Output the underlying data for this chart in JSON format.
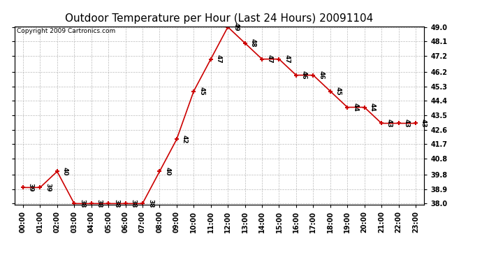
{
  "title": "Outdoor Temperature per Hour (Last 24 Hours) 20091104",
  "copyright": "Copyright 2009 Cartronics.com",
  "hours": [
    "00:00",
    "01:00",
    "02:00",
    "03:00",
    "04:00",
    "05:00",
    "06:00",
    "07:00",
    "08:00",
    "09:00",
    "10:00",
    "11:00",
    "12:00",
    "13:00",
    "14:00",
    "15:00",
    "16:00",
    "17:00",
    "18:00",
    "19:00",
    "20:00",
    "21:00",
    "22:00",
    "23:00"
  ],
  "temps": [
    39,
    39,
    40,
    38,
    38,
    38,
    38,
    38,
    40,
    42,
    45,
    47,
    49,
    48,
    47,
    47,
    46,
    46,
    45,
    44,
    44,
    43,
    43,
    43
  ],
  "line_color": "#cc0000",
  "marker_color": "#cc0000",
  "bg_color": "#ffffff",
  "grid_color": "#aaaaaa",
  "ylim_min": 38.0,
  "ylim_max": 49.0,
  "yticks": [
    38.0,
    38.9,
    39.8,
    40.8,
    41.7,
    42.6,
    43.5,
    44.4,
    45.3,
    46.2,
    47.2,
    48.1,
    49.0
  ],
  "title_fontsize": 11,
  "label_fontsize": 6.5,
  "copyright_fontsize": 6.5,
  "tick_fontsize": 7.0
}
